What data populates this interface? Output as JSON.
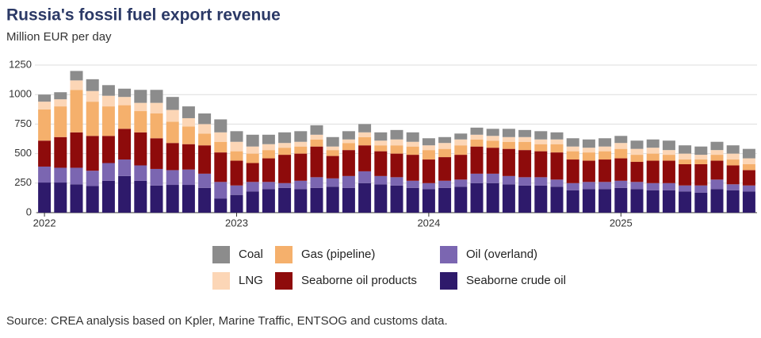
{
  "chart_data": {
    "type": "stacked_bar",
    "title": "Russia's fossil fuel export revenue",
    "subtitle": "Million EUR per day",
    "source": "Source: CREA analysis based on Kpler, Marine Traffic, ENTSOG and customs data.",
    "categories": [
      "2022",
      null,
      null,
      null,
      null,
      null,
      null,
      null,
      null,
      null,
      null,
      null,
      "2023",
      null,
      null,
      null,
      null,
      null,
      null,
      null,
      null,
      null,
      null,
      null,
      "2024",
      null,
      null,
      null,
      null,
      null,
      null,
      null,
      null,
      null,
      null,
      null,
      "2025",
      null,
      null,
      null,
      null,
      null,
      null,
      null,
      null
    ],
    "series": [
      {
        "name": "Seaborne crude oil",
        "color": "#2e1a6b",
        "values": [
          255,
          255,
          240,
          225,
          270,
          310,
          270,
          230,
          235,
          235,
          210,
          120,
          150,
          180,
          200,
          210,
          200,
          210,
          220,
          210,
          250,
          240,
          230,
          210,
          200,
          210,
          220,
          250,
          250,
          240,
          230,
          230,
          220,
          190,
          200,
          200,
          210,
          200,
          190,
          190,
          180,
          170,
          200,
          190,
          180
        ]
      },
      {
        "name": "Oil (overland)",
        "color": "#7b66b1",
        "values": [
          135,
          125,
          140,
          130,
          150,
          140,
          130,
          140,
          125,
          130,
          120,
          140,
          80,
          80,
          60,
          40,
          70,
          90,
          70,
          100,
          100,
          70,
          70,
          60,
          50,
          60,
          60,
          80,
          80,
          70,
          70,
          70,
          60,
          60,
          60,
          60,
          60,
          60,
          60,
          60,
          50,
          60,
          80,
          50,
          50
        ]
      },
      {
        "name": "Seaborne oil products",
        "color": "#8e0b0b",
        "values": [
          220,
          260,
          300,
          295,
          230,
          260,
          280,
          260,
          230,
          215,
          240,
          250,
          210,
          160,
          200,
          240,
          230,
          260,
          190,
          220,
          220,
          210,
          200,
          220,
          200,
          200,
          210,
          230,
          220,
          230,
          230,
          220,
          230,
          200,
          180,
          190,
          190,
          170,
          190,
          190,
          180,
          180,
          160,
          160,
          130
        ]
      },
      {
        "name": "Gas (pipeline)",
        "color": "#f5b06c",
        "values": [
          265,
          260,
          360,
          290,
          250,
          200,
          180,
          210,
          180,
          150,
          100,
          90,
          80,
          80,
          70,
          60,
          60,
          60,
          50,
          60,
          70,
          50,
          70,
          70,
          80,
          70,
          80,
          60,
          60,
          60,
          70,
          60,
          70,
          70,
          70,
          70,
          80,
          60,
          60,
          50,
          40,
          40,
          50,
          50,
          50
        ]
      },
      {
        "name": "LNG",
        "color": "#fcd6b6",
        "values": [
          65,
          60,
          80,
          90,
          90,
          70,
          70,
          90,
          100,
          70,
          80,
          80,
          80,
          60,
          50,
          40,
          40,
          40,
          30,
          30,
          40,
          40,
          50,
          40,
          40,
          50,
          50,
          40,
          40,
          40,
          40,
          40,
          40,
          40,
          40,
          40,
          50,
          50,
          50,
          40,
          50,
          40,
          40,
          50,
          50
        ]
      },
      {
        "name": "Coal",
        "color": "#8c8c8c",
        "values": [
          60,
          60,
          80,
          100,
          90,
          70,
          110,
          110,
          110,
          100,
          90,
          110,
          90,
          100,
          80,
          90,
          90,
          80,
          80,
          70,
          70,
          70,
          80,
          80,
          60,
          50,
          50,
          60,
          60,
          70,
          60,
          70,
          60,
          70,
          70,
          70,
          60,
          70,
          70,
          80,
          70,
          70,
          70,
          70,
          80
        ]
      }
    ],
    "ylim": [
      0,
      1250
    ],
    "yticks": [
      0,
      250,
      500,
      750,
      1000,
      {
        "value": 1250,
        "label": "1250"
      }
    ],
    "grid": true
  }
}
